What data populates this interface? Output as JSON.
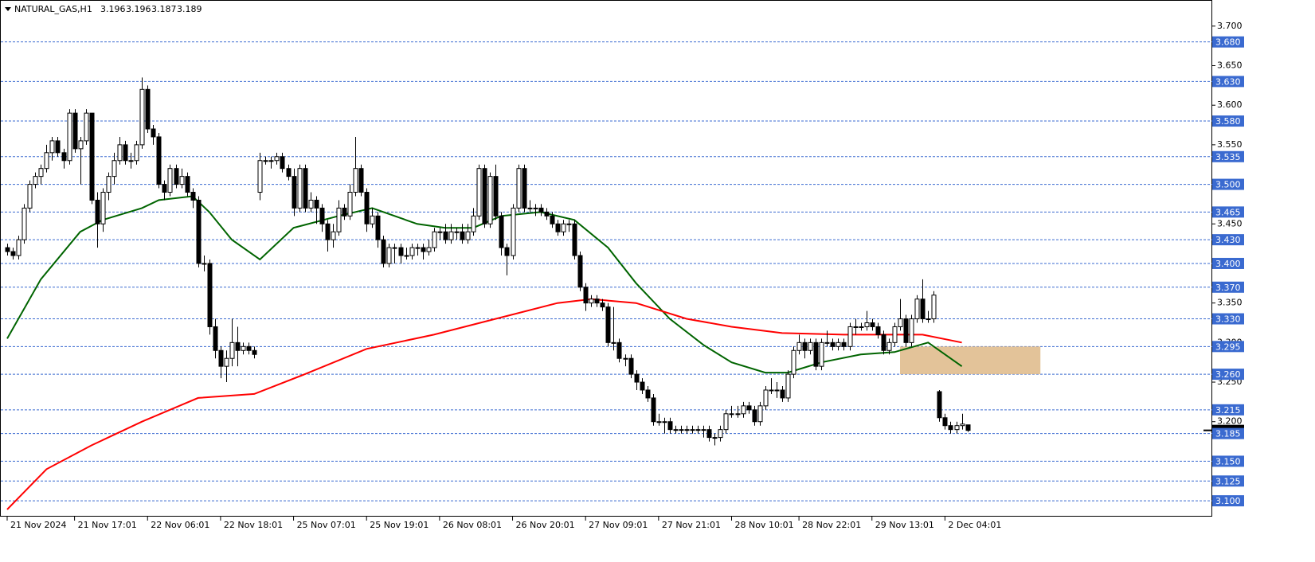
{
  "chart_data": {
    "type": "candlestick",
    "symbol": "NATURAL_GAS,H1",
    "ylim": [
      3.081,
      3.733
    ],
    "xlim": [
      -1.135,
      214.6
    ],
    "yticks": [
      {
        "value": 3.7,
        "label": "3.700"
      },
      {
        "value": 3.65,
        "label": "3.650"
      },
      {
        "value": 3.6,
        "label": "3.600"
      },
      {
        "value": 3.55,
        "label": "3.550"
      },
      {
        "value": 3.45,
        "label": "3.450"
      },
      {
        "value": 3.35,
        "label": "3.350"
      },
      {
        "value": 3.3,
        "label": "3.300"
      },
      {
        "value": 3.25,
        "label": "3.250"
      },
      {
        "value": 3.2,
        "label": "3.200"
      }
    ],
    "levels": [
      {
        "value": 3.68,
        "label": "3.680"
      },
      {
        "value": 3.63,
        "label": "3.630"
      },
      {
        "value": 3.58,
        "label": "3.580"
      },
      3.535,
      {
        "value": 3.5,
        "label": "3.500"
      },
      3.465,
      {
        "value": 3.43,
        "label": "3.430"
      },
      {
        "value": 3.4,
        "label": "3.400"
      },
      {
        "value": 3.37,
        "label": "3.370"
      },
      {
        "value": 3.33,
        "label": "3.330"
      },
      3.295,
      {
        "value": 3.26,
        "label": "3.260"
      },
      3.215,
      3.185,
      {
        "value": 3.15,
        "label": "3.150"
      },
      3.125,
      {
        "value": 3.1,
        "label": "3.100"
      }
    ],
    "level_color": "#3a6ad0",
    "xticks": [
      {
        "value": 0,
        "label": "21 Nov 2024"
      },
      {
        "value": 12,
        "label": "21 Nov 17:01"
      },
      {
        "value": 25,
        "label": "22 Nov 06:01"
      },
      {
        "value": 38,
        "label": "22 Nov 18:01"
      },
      {
        "value": 51,
        "label": "25 Nov 07:01"
      },
      {
        "value": 64,
        "label": "25 Nov 19:01"
      },
      {
        "value": 77,
        "label": "26 Nov 08:01"
      },
      {
        "value": 90,
        "label": "26 Nov 20:01"
      },
      {
        "value": 103,
        "label": "27 Nov 09:01"
      },
      {
        "value": 116,
        "label": "27 Nov 21:01"
      },
      {
        "value": 129,
        "label": "28 Nov 10:01"
      },
      {
        "value": 141,
        "label": "28 Nov 22:01"
      },
      {
        "value": 154,
        "label": "29 Nov 13:01"
      },
      {
        "value": 167,
        "label": "2 Dec 04:01"
      }
    ],
    "ohlc": [
      [
        3.42,
        3.425,
        3.41,
        3.415
      ],
      [
        3.415,
        3.42,
        3.405,
        3.41
      ],
      [
        3.41,
        3.435,
        3.405,
        3.43
      ],
      [
        3.43,
        3.475,
        3.425,
        3.47
      ],
      [
        3.47,
        3.505,
        3.465,
        3.5
      ],
      [
        3.5,
        3.515,
        3.495,
        3.51
      ],
      [
        3.51,
        3.525,
        3.5,
        3.52
      ],
      [
        3.52,
        3.55,
        3.515,
        3.54
      ],
      [
        3.54,
        3.56,
        3.53,
        3.555
      ],
      [
        3.555,
        3.56,
        3.535,
        3.54
      ],
      [
        3.54,
        3.545,
        3.52,
        3.53
      ],
      [
        3.53,
        3.595,
        3.525,
        3.59
      ],
      [
        3.59,
        3.595,
        3.54,
        3.545
      ],
      [
        3.545,
        3.56,
        3.5,
        3.555
      ],
      [
        3.555,
        3.595,
        3.55,
        3.59
      ],
      [
        3.59,
        3.59,
        3.475,
        3.48
      ],
      [
        3.48,
        3.49,
        3.42,
        3.45
      ],
      [
        3.45,
        3.495,
        3.44,
        3.49
      ],
      [
        3.49,
        3.515,
        3.48,
        3.51
      ],
      [
        3.51,
        3.54,
        3.5,
        3.53
      ],
      [
        3.53,
        3.56,
        3.525,
        3.55
      ],
      [
        3.55,
        3.555,
        3.525,
        3.53
      ],
      [
        3.53,
        3.54,
        3.52,
        3.53
      ],
      [
        3.53,
        3.555,
        3.525,
        3.55
      ],
      [
        3.55,
        3.635,
        3.545,
        3.62
      ],
      [
        3.62,
        3.625,
        3.565,
        3.57
      ],
      [
        3.57,
        3.575,
        3.55,
        3.56
      ],
      [
        3.56,
        3.565,
        3.495,
        3.5
      ],
      [
        3.5,
        3.505,
        3.48,
        3.49
      ],
      [
        3.49,
        3.525,
        3.485,
        3.52
      ],
      [
        3.52,
        3.525,
        3.495,
        3.5
      ],
      [
        3.5,
        3.52,
        3.495,
        3.51
      ],
      [
        3.51,
        3.515,
        3.485,
        3.49
      ],
      [
        3.49,
        3.495,
        3.47,
        3.48
      ],
      [
        3.48,
        3.485,
        3.395,
        3.4
      ],
      [
        3.4,
        3.41,
        3.39,
        3.4
      ],
      [
        3.4,
        3.405,
        3.31,
        3.32
      ],
      [
        3.32,
        3.33,
        3.28,
        3.29
      ],
      [
        3.29,
        3.295,
        3.255,
        3.27
      ],
      [
        3.27,
        3.29,
        3.25,
        3.28
      ],
      [
        3.28,
        3.33,
        3.27,
        3.3
      ],
      [
        3.3,
        3.32,
        3.27,
        3.29
      ],
      [
        3.29,
        3.3,
        3.285,
        3.295
      ],
      [
        3.295,
        3.3,
        3.285,
        3.29
      ],
      [
        3.29,
        3.295,
        3.28,
        3.285
      ],
      [
        3.49,
        3.54,
        3.48,
        3.53
      ],
      [
        3.53,
        3.535,
        3.525,
        3.53
      ],
      [
        3.53,
        3.535,
        3.52,
        3.53
      ],
      [
        3.53,
        3.54,
        3.525,
        3.535
      ],
      [
        3.535,
        3.54,
        3.515,
        3.52
      ],
      [
        3.52,
        3.525,
        3.505,
        3.51
      ],
      [
        3.51,
        3.52,
        3.46,
        3.47
      ],
      [
        3.47,
        3.525,
        3.465,
        3.52
      ],
      [
        3.52,
        3.525,
        3.465,
        3.47
      ],
      [
        3.47,
        3.49,
        3.465,
        3.48
      ],
      [
        3.48,
        3.485,
        3.45,
        3.47
      ],
      [
        3.47,
        3.475,
        3.44,
        3.45
      ],
      [
        3.45,
        3.455,
        3.415,
        3.43
      ],
      [
        3.43,
        3.45,
        3.42,
        3.44
      ],
      [
        3.44,
        3.48,
        3.435,
        3.47
      ],
      [
        3.47,
        3.475,
        3.455,
        3.46
      ],
      [
        3.46,
        3.5,
        3.455,
        3.49
      ],
      [
        3.49,
        3.56,
        3.485,
        3.52
      ],
      [
        3.52,
        3.525,
        3.485,
        3.49
      ],
      [
        3.49,
        3.495,
        3.44,
        3.45
      ],
      [
        3.45,
        3.47,
        3.445,
        3.46
      ],
      [
        3.46,
        3.465,
        3.42,
        3.43
      ],
      [
        3.43,
        3.435,
        3.395,
        3.4
      ],
      [
        3.4,
        3.425,
        3.395,
        3.42
      ],
      [
        3.42,
        3.425,
        3.4,
        3.42
      ],
      [
        3.42,
        3.425,
        3.4,
        3.41
      ],
      [
        3.41,
        3.42,
        3.405,
        3.41
      ],
      [
        3.41,
        3.425,
        3.405,
        3.42
      ],
      [
        3.42,
        3.425,
        3.41,
        3.42
      ],
      [
        3.42,
        3.425,
        3.405,
        3.415
      ],
      [
        3.415,
        3.43,
        3.41,
        3.42
      ],
      [
        3.42,
        3.445,
        3.415,
        3.44
      ],
      [
        3.44,
        3.445,
        3.43,
        3.44
      ],
      [
        3.44,
        3.45,
        3.425,
        3.43
      ],
      [
        3.43,
        3.45,
        3.425,
        3.44
      ],
      [
        3.44,
        3.445,
        3.43,
        3.44
      ],
      [
        3.44,
        3.45,
        3.425,
        3.43
      ],
      [
        3.43,
        3.45,
        3.425,
        3.44
      ],
      [
        3.44,
        3.47,
        3.435,
        3.46
      ],
      [
        3.46,
        3.525,
        3.455,
        3.52
      ],
      [
        3.52,
        3.525,
        3.445,
        3.45
      ],
      [
        3.45,
        3.515,
        3.445,
        3.51
      ],
      [
        3.51,
        3.525,
        3.455,
        3.46
      ],
      [
        3.46,
        3.465,
        3.41,
        3.42
      ],
      [
        3.42,
        3.425,
        3.385,
        3.41
      ],
      [
        3.41,
        3.475,
        3.405,
        3.47
      ],
      [
        3.47,
        3.525,
        3.465,
        3.52
      ],
      [
        3.52,
        3.525,
        3.465,
        3.47
      ],
      [
        3.47,
        3.48,
        3.465,
        3.47
      ],
      [
        3.47,
        3.475,
        3.46,
        3.47
      ],
      [
        3.47,
        3.475,
        3.46,
        3.465
      ],
      [
        3.465,
        3.47,
        3.455,
        3.46
      ],
      [
        3.46,
        3.465,
        3.445,
        3.45
      ],
      [
        3.45,
        3.455,
        3.435,
        3.44
      ],
      [
        3.44,
        3.455,
        3.435,
        3.45
      ],
      [
        3.45,
        3.455,
        3.44,
        3.45
      ],
      [
        3.45,
        3.455,
        3.405,
        3.41
      ],
      [
        3.41,
        3.415,
        3.365,
        3.37
      ],
      [
        3.37,
        3.375,
        3.34,
        3.35
      ],
      [
        3.35,
        3.36,
        3.345,
        3.355
      ],
      [
        3.355,
        3.36,
        3.345,
        3.35
      ],
      [
        3.35,
        3.355,
        3.34,
        3.345
      ],
      [
        3.345,
        3.35,
        3.295,
        3.3
      ],
      [
        3.3,
        3.345,
        3.29,
        3.3
      ],
      [
        3.3,
        3.305,
        3.275,
        3.28
      ],
      [
        3.28,
        3.285,
        3.27,
        3.28
      ],
      [
        3.28,
        3.285,
        3.255,
        3.26
      ],
      [
        3.26,
        3.265,
        3.24,
        3.25
      ],
      [
        3.25,
        3.255,
        3.235,
        3.24
      ],
      [
        3.24,
        3.245,
        3.225,
        3.23
      ],
      [
        3.23,
        3.235,
        3.195,
        3.2
      ],
      [
        3.2,
        3.21,
        3.195,
        3.2
      ],
      [
        3.2,
        3.205,
        3.185,
        3.2
      ],
      [
        3.2,
        3.205,
        3.185,
        3.19
      ],
      [
        3.19,
        3.195,
        3.185,
        3.19
      ],
      [
        3.19,
        3.195,
        3.185,
        3.19
      ],
      [
        3.19,
        3.195,
        3.185,
        3.19
      ],
      [
        3.19,
        3.195,
        3.185,
        3.19
      ],
      [
        3.19,
        3.195,
        3.185,
        3.19
      ],
      [
        3.19,
        3.195,
        3.18,
        3.19
      ],
      [
        3.19,
        3.195,
        3.175,
        3.18
      ],
      [
        3.18,
        3.185,
        3.17,
        3.18
      ],
      [
        3.18,
        3.195,
        3.175,
        3.19
      ],
      [
        3.19,
        3.215,
        3.185,
        3.21
      ],
      [
        3.21,
        3.22,
        3.205,
        3.21
      ],
      [
        3.21,
        3.22,
        3.205,
        3.21
      ],
      [
        3.21,
        3.225,
        3.205,
        3.22
      ],
      [
        3.22,
        3.225,
        3.21,
        3.215
      ],
      [
        3.215,
        3.22,
        3.195,
        3.2
      ],
      [
        3.2,
        3.225,
        3.195,
        3.22
      ],
      [
        3.22,
        3.245,
        3.215,
        3.24
      ],
      [
        3.24,
        3.255,
        3.235,
        3.24
      ],
      [
        3.24,
        3.25,
        3.23,
        3.24
      ],
      [
        3.24,
        3.245,
        3.225,
        3.23
      ],
      [
        3.23,
        3.265,
        3.225,
        3.26
      ],
      [
        3.26,
        3.295,
        3.255,
        3.29
      ],
      [
        3.29,
        3.31,
        3.285,
        3.3
      ],
      [
        3.3,
        3.305,
        3.28,
        3.29
      ],
      [
        3.29,
        3.305,
        3.285,
        3.3
      ],
      [
        3.3,
        3.305,
        3.265,
        3.27
      ],
      [
        3.27,
        3.305,
        3.265,
        3.3
      ],
      [
        3.3,
        3.315,
        3.295,
        3.3
      ],
      [
        3.3,
        3.305,
        3.29,
        3.295
      ],
      [
        3.295,
        3.305,
        3.29,
        3.3
      ],
      [
        3.3,
        3.305,
        3.29,
        3.295
      ],
      [
        3.295,
        3.325,
        3.29,
        3.32
      ],
      [
        3.32,
        3.33,
        3.31,
        3.32
      ],
      [
        3.32,
        3.325,
        3.315,
        3.32
      ],
      [
        3.32,
        3.34,
        3.315,
        3.325
      ],
      [
        3.325,
        3.33,
        3.315,
        3.32
      ],
      [
        3.32,
        3.325,
        3.305,
        3.31
      ],
      [
        3.31,
        3.315,
        3.285,
        3.29
      ],
      [
        3.29,
        3.305,
        3.285,
        3.3
      ],
      [
        3.3,
        3.325,
        3.295,
        3.32
      ],
      [
        3.32,
        3.355,
        3.315,
        3.33
      ],
      [
        3.33,
        3.335,
        3.295,
        3.3
      ],
      [
        3.3,
        3.335,
        3.295,
        3.33
      ],
      [
        3.33,
        3.36,
        3.325,
        3.355
      ],
      [
        3.355,
        3.38,
        3.325,
        3.33
      ],
      [
        3.33,
        3.34,
        3.325,
        3.33
      ],
      [
        3.33,
        3.365,
        3.325,
        3.36
      ],
      [
        3.238,
        3.24,
        3.2,
        3.205
      ],
      [
        3.205,
        3.21,
        3.19,
        3.195
      ],
      [
        3.195,
        3.2,
        3.185,
        3.19
      ],
      [
        3.19,
        3.2,
        3.185,
        3.195
      ],
      [
        3.195,
        3.21,
        3.19,
        3.197
      ],
      [
        3.196,
        3.196,
        3.187,
        3.189
      ]
    ],
    "series": [
      {
        "color": "#006400",
        "x": [
          0,
          6,
          13,
          17,
          24,
          27,
          33,
          36,
          40,
          45,
          51,
          59,
          65,
          73,
          78,
          83,
          88,
          95,
          101,
          107,
          112,
          118,
          124,
          129,
          135,
          139,
          145,
          152,
          158,
          164,
          170
        ],
        "values": [
          3.305,
          3.38,
          3.44,
          3.455,
          3.47,
          3.48,
          3.485,
          3.465,
          3.43,
          3.405,
          3.445,
          3.46,
          3.47,
          3.45,
          3.445,
          3.445,
          3.46,
          3.465,
          3.455,
          3.42,
          3.375,
          3.33,
          3.297,
          3.275,
          3.262,
          3.262,
          3.275,
          3.285,
          3.288,
          3.3,
          3.27
        ]
      },
      {
        "color": "#ff0000",
        "x": [
          0,
          7,
          15,
          24,
          34,
          44,
          53,
          64,
          76,
          87,
          98,
          104,
          112,
          121,
          129,
          138,
          149,
          158,
          163,
          170
        ],
        "values": [
          3.089,
          3.14,
          3.17,
          3.2,
          3.23,
          3.235,
          3.26,
          3.292,
          3.31,
          3.33,
          3.35,
          3.355,
          3.35,
          3.33,
          3.32,
          3.312,
          3.31,
          3.31,
          3.31,
          3.3
        ]
      }
    ],
    "zone": {
      "x": [
        159,
        184
      ],
      "y": [
        3.26,
        3.295
      ],
      "color": "#deb887"
    }
  }
}
